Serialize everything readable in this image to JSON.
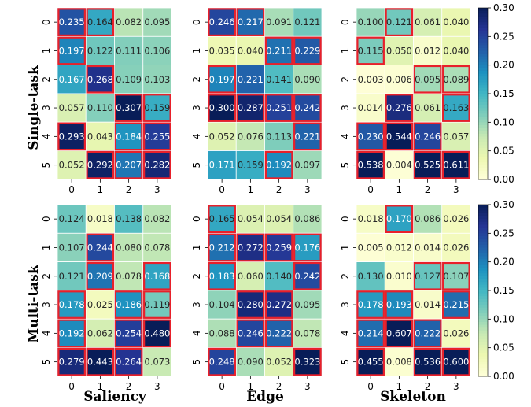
{
  "row_labels": [
    "Single-task",
    "Multi-task"
  ],
  "column_labels": [
    "Saliency",
    "Edge",
    "Skeleton"
  ],
  "colorbar": {
    "ticks": [
      "0.00",
      "0.05",
      "0.10",
      "0.15",
      "0.20",
      "0.25",
      "0.30"
    ],
    "range": [
      0,
      0.3
    ],
    "colormap": "YlGnBu"
  },
  "highlight_color": "#e8202a",
  "chart_data": [
    {
      "type": "heatmap",
      "row": "Single-task",
      "column": "Saliency",
      "x_ticks": [
        "0",
        "1",
        "2",
        "3"
      ],
      "y_ticks": [
        "0",
        "1",
        "2",
        "3",
        "4",
        "5"
      ],
      "values": [
        [
          0.235,
          0.164,
          0.082,
          0.095
        ],
        [
          0.197,
          0.122,
          0.111,
          0.106
        ],
        [
          0.167,
          0.268,
          0.109,
          0.103
        ],
        [
          0.057,
          0.11,
          0.307,
          0.159
        ],
        [
          0.293,
          0.043,
          0.184,
          0.255
        ],
        [
          0.052,
          0.292,
          0.207,
          0.282
        ]
      ],
      "labels": [
        [
          "0.235",
          "0.164",
          "0.082",
          "0.095"
        ],
        [
          "0.197",
          "0.122",
          "0.111",
          "0.106"
        ],
        [
          "0.167",
          "0.268",
          "0.109",
          "0.103"
        ],
        [
          "0.057",
          "0.110",
          "0.307",
          "0.159"
        ],
        [
          "0.293",
          "0.043",
          "0.184",
          "0.255"
        ],
        [
          "0.052",
          "0.292",
          "0.207",
          "0.282"
        ]
      ],
      "highlighted": [
        [
          0,
          0
        ],
        [
          0,
          1
        ],
        [
          1,
          0
        ],
        [
          2,
          1
        ],
        [
          3,
          2
        ],
        [
          3,
          3
        ],
        [
          4,
          0
        ],
        [
          4,
          2
        ],
        [
          4,
          3
        ],
        [
          5,
          1
        ],
        [
          5,
          2
        ],
        [
          5,
          3
        ]
      ]
    },
    {
      "type": "heatmap",
      "row": "Single-task",
      "column": "Edge",
      "x_ticks": [
        "0",
        "1",
        "2",
        "3"
      ],
      "y_ticks": [
        "0",
        "1",
        "2",
        "3",
        "4",
        "5"
      ],
      "values": [
        [
          0.246,
          0.217,
          0.091,
          0.121
        ],
        [
          0.035,
          0.04,
          0.211,
          0.229
        ],
        [
          0.197,
          0.221,
          0.141,
          0.09
        ],
        [
          0.3,
          0.287,
          0.251,
          0.242
        ],
        [
          0.052,
          0.076,
          0.113,
          0.221
        ],
        [
          0.171,
          0.159,
          0.192,
          0.097
        ]
      ],
      "labels": [
        [
          "0.246",
          "0.217",
          "0.091",
          "0.121"
        ],
        [
          "0.035",
          "0.040",
          "0.211",
          "0.229"
        ],
        [
          "0.197",
          "0.221",
          "0.141",
          "0.090"
        ],
        [
          "0.300",
          "0.287",
          "0.251",
          "0.242"
        ],
        [
          "0.052",
          "0.076",
          "0.113",
          "0.221"
        ],
        [
          "0.171",
          "0.159",
          "0.192",
          "0.097"
        ]
      ],
      "highlighted": [
        [
          0,
          0
        ],
        [
          0,
          1
        ],
        [
          1,
          2
        ],
        [
          1,
          3
        ],
        [
          2,
          0
        ],
        [
          3,
          0
        ],
        [
          3,
          1
        ],
        [
          3,
          2
        ],
        [
          3,
          3
        ],
        [
          4,
          3
        ],
        [
          5,
          2
        ]
      ]
    },
    {
      "type": "heatmap",
      "row": "Single-task",
      "column": "Skeleton",
      "x_ticks": [
        "0",
        "1",
        "2",
        "3"
      ],
      "y_ticks": [
        "0",
        "1",
        "2",
        "3",
        "4",
        "5"
      ],
      "values": [
        [
          0.1,
          0.121,
          0.061,
          0.04
        ],
        [
          0.115,
          0.05,
          0.012,
          0.04
        ],
        [
          0.003,
          0.006,
          0.095,
          0.089
        ],
        [
          0.014,
          0.276,
          0.061,
          0.163
        ],
        [
          0.23,
          0.544,
          0.246,
          0.057
        ],
        [
          0.538,
          0.004,
          0.525,
          0.611
        ]
      ],
      "labels": [
        [
          "0.100",
          "0.121",
          "0.061",
          "0.040"
        ],
        [
          "0.115",
          "0.050",
          "0.012",
          "0.040"
        ],
        [
          "0.003",
          "0.006",
          "0.095",
          "0.089"
        ],
        [
          "0.014",
          "0.276",
          "0.061",
          "0.163"
        ],
        [
          "0.230",
          "0.544",
          "0.246",
          "0.057"
        ],
        [
          "0.538",
          "0.004",
          "0.525",
          "0.611"
        ]
      ],
      "highlighted": [
        [
          0,
          1
        ],
        [
          1,
          0
        ],
        [
          2,
          2
        ],
        [
          2,
          3
        ],
        [
          3,
          1
        ],
        [
          3,
          3
        ],
        [
          4,
          0
        ],
        [
          4,
          1
        ],
        [
          4,
          2
        ],
        [
          5,
          0
        ],
        [
          5,
          2
        ],
        [
          5,
          3
        ]
      ]
    },
    {
      "type": "heatmap",
      "row": "Multi-task",
      "column": "Saliency",
      "x_ticks": [
        "0",
        "1",
        "2",
        "3"
      ],
      "y_ticks": [
        "0",
        "1",
        "2",
        "3",
        "4",
        "5"
      ],
      "values": [
        [
          0.124,
          0.018,
          0.138,
          0.082
        ],
        [
          0.107,
          0.244,
          0.08,
          0.078
        ],
        [
          0.121,
          0.209,
          0.078,
          0.168
        ],
        [
          0.178,
          0.025,
          0.186,
          0.119
        ],
        [
          0.192,
          0.062,
          0.254,
          0.48
        ],
        [
          0.279,
          0.443,
          0.264,
          0.073
        ]
      ],
      "labels": [
        [
          "0.124",
          "0.018",
          "0.138",
          "0.082"
        ],
        [
          "0.107",
          "0.244",
          "0.080",
          "0.078"
        ],
        [
          "0.121",
          "0.209",
          "0.078",
          "0.168"
        ],
        [
          "0.178",
          "0.025",
          "0.186",
          "0.119"
        ],
        [
          "0.192",
          "0.062",
          "0.254",
          "0.480"
        ],
        [
          "0.279",
          "0.443",
          "0.264",
          "0.073"
        ]
      ],
      "highlighted": [
        [
          1,
          1
        ],
        [
          2,
          1
        ],
        [
          2,
          3
        ],
        [
          3,
          0
        ],
        [
          3,
          2
        ],
        [
          3,
          3
        ],
        [
          4,
          0
        ],
        [
          4,
          2
        ],
        [
          4,
          3
        ],
        [
          5,
          0
        ],
        [
          5,
          1
        ],
        [
          5,
          2
        ]
      ]
    },
    {
      "type": "heatmap",
      "row": "Multi-task",
      "column": "Edge",
      "x_ticks": [
        "0",
        "1",
        "2",
        "3"
      ],
      "y_ticks": [
        "0",
        "1",
        "2",
        "3",
        "4",
        "5"
      ],
      "values": [
        [
          0.165,
          0.054,
          0.054,
          0.086
        ],
        [
          0.212,
          0.272,
          0.259,
          0.176
        ],
        [
          0.183,
          0.06,
          0.14,
          0.242
        ],
        [
          0.104,
          0.28,
          0.272,
          0.095
        ],
        [
          0.088,
          0.246,
          0.222,
          0.078
        ],
        [
          0.248,
          0.09,
          0.052,
          0.323
        ]
      ],
      "labels": [
        [
          "0.165",
          "0.054",
          "0.054",
          "0.086"
        ],
        [
          "0.212",
          "0.272",
          "0.259",
          "0.176"
        ],
        [
          "0.183",
          "0.060",
          "0.140",
          "0.242"
        ],
        [
          "0.104",
          "0.280",
          "0.272",
          "0.095"
        ],
        [
          "0.088",
          "0.246",
          "0.222",
          "0.078"
        ],
        [
          "0.248",
          "0.090",
          "0.052",
          "0.323"
        ]
      ],
      "highlighted": [
        [
          0,
          0
        ],
        [
          1,
          0
        ],
        [
          1,
          1
        ],
        [
          1,
          2
        ],
        [
          1,
          3
        ],
        [
          2,
          0
        ],
        [
          2,
          3
        ],
        [
          3,
          1
        ],
        [
          3,
          2
        ],
        [
          4,
          1
        ],
        [
          4,
          2
        ],
        [
          5,
          0
        ],
        [
          5,
          3
        ]
      ]
    },
    {
      "type": "heatmap",
      "row": "Multi-task",
      "column": "Skeleton",
      "x_ticks": [
        "0",
        "1",
        "2",
        "3"
      ],
      "y_ticks": [
        "0",
        "1",
        "2",
        "3",
        "4",
        "5"
      ],
      "values": [
        [
          0.018,
          0.17,
          0.086,
          0.026
        ],
        [
          0.005,
          0.012,
          0.014,
          0.026
        ],
        [
          0.13,
          0.01,
          0.127,
          0.107
        ],
        [
          0.178,
          0.193,
          0.014,
          0.215
        ],
        [
          0.214,
          0.607,
          0.222,
          0.026
        ],
        [
          0.455,
          0.008,
          0.536,
          0.6
        ]
      ],
      "labels": [
        [
          "0.018",
          "0.170",
          "0.086",
          "0.026"
        ],
        [
          "0.005",
          "0.012",
          "0.014",
          "0.026"
        ],
        [
          "0.130",
          "0.010",
          "0.127",
          "0.107"
        ],
        [
          "0.178",
          "0.193",
          "0.014",
          "0.215"
        ],
        [
          "0.214",
          "0.607",
          "0.222",
          "0.026"
        ],
        [
          "0.455",
          "0.008",
          "0.536",
          "0.600"
        ]
      ],
      "highlighted": [
        [
          0,
          1
        ],
        [
          2,
          2
        ],
        [
          2,
          3
        ],
        [
          3,
          0
        ],
        [
          3,
          1
        ],
        [
          3,
          3
        ],
        [
          4,
          0
        ],
        [
          4,
          1
        ],
        [
          4,
          2
        ],
        [
          5,
          0
        ],
        [
          5,
          2
        ],
        [
          5,
          3
        ]
      ]
    }
  ]
}
